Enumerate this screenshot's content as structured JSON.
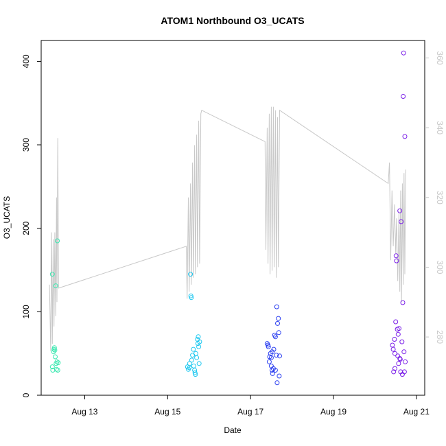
{
  "chart_data": {
    "type": "scatter",
    "title": "ATOM1 Northbound O3_UCATS",
    "xlabel": "Date",
    "ylabel": "O3_UCATS",
    "x_ticks": [
      {
        "label": "Aug 13",
        "value": 13.0
      },
      {
        "label": "Aug 15",
        "value": 15.0
      },
      {
        "label": "Aug 17",
        "value": 17.0
      },
      {
        "label": "Aug 19",
        "value": 19.0
      },
      {
        "label": "Aug 21",
        "value": 21.0
      }
    ],
    "xlim": [
      11.95,
      21.2
    ],
    "ylim": [
      0,
      425
    ],
    "y_ticks": [
      0,
      100,
      200,
      300,
      400
    ],
    "secondary_axis": {
      "color": "#c8c8c8",
      "ylim": [
        263.3,
        365.0
      ],
      "y_ticks": [
        280,
        300,
        320,
        340,
        360
      ]
    },
    "series": [
      {
        "color": "#3be8b0",
        "points": [
          [
            12.22,
            145
          ],
          [
            12.22,
            34
          ],
          [
            12.23,
            30
          ],
          [
            12.25,
            52
          ],
          [
            12.26,
            55
          ],
          [
            12.27,
            57
          ],
          [
            12.28,
            54
          ],
          [
            12.29,
            46
          ],
          [
            12.3,
            131
          ],
          [
            12.31,
            38
          ],
          [
            12.32,
            31
          ],
          [
            12.33,
            40
          ],
          [
            12.34,
            185
          ],
          [
            12.35,
            30
          ],
          [
            12.36,
            39
          ]
        ]
      },
      {
        "color": "#1ec8f0",
        "points": [
          [
            15.48,
            34
          ],
          [
            15.5,
            31
          ],
          [
            15.52,
            33
          ],
          [
            15.53,
            38
          ],
          [
            15.55,
            145
          ],
          [
            15.56,
            119
          ],
          [
            15.57,
            117
          ],
          [
            15.58,
            42
          ],
          [
            15.6,
            48
          ],
          [
            15.62,
            55
          ],
          [
            15.63,
            35
          ],
          [
            15.65,
            30
          ],
          [
            15.66,
            27
          ],
          [
            15.67,
            25
          ],
          [
            15.68,
            50
          ],
          [
            15.7,
            45
          ],
          [
            15.72,
            67
          ],
          [
            15.73,
            62
          ],
          [
            15.74,
            70
          ],
          [
            15.75,
            58
          ],
          [
            15.76,
            38
          ],
          [
            15.77,
            64
          ]
        ]
      },
      {
        "color": "#2a3ef0",
        "points": [
          [
            17.4,
            62
          ],
          [
            17.42,
            60
          ],
          [
            17.43,
            58
          ],
          [
            17.45,
            40
          ],
          [
            17.46,
            46
          ],
          [
            17.48,
            50
          ],
          [
            17.5,
            35
          ],
          [
            17.52,
            30
          ],
          [
            17.53,
            26
          ],
          [
            17.55,
            32
          ],
          [
            17.56,
            55
          ],
          [
            17.58,
            72
          ],
          [
            17.6,
            70
          ],
          [
            17.62,
            48
          ],
          [
            17.63,
            106
          ],
          [
            17.64,
            15
          ],
          [
            17.65,
            86
          ],
          [
            17.67,
            92
          ],
          [
            17.68,
            75
          ],
          [
            17.69,
            23
          ],
          [
            17.7,
            47
          ],
          [
            17.52,
            52
          ],
          [
            17.5,
            45
          ],
          [
            17.6,
            30
          ]
        ]
      },
      {
        "color": "#7a1ee8",
        "points": [
          [
            20.42,
            60
          ],
          [
            20.44,
            55
          ],
          [
            20.45,
            28
          ],
          [
            20.47,
            67
          ],
          [
            20.48,
            32
          ],
          [
            20.5,
            88
          ],
          [
            20.51,
            167
          ],
          [
            20.52,
            161
          ],
          [
            20.54,
            79
          ],
          [
            20.56,
            73
          ],
          [
            20.57,
            38
          ],
          [
            20.58,
            80
          ],
          [
            20.6,
            221
          ],
          [
            20.61,
            43
          ],
          [
            20.62,
            28
          ],
          [
            20.63,
            208
          ],
          [
            20.65,
            64
          ],
          [
            20.66,
            25
          ],
          [
            20.67,
            111
          ],
          [
            20.68,
            358
          ],
          [
            20.69,
            410
          ],
          [
            20.7,
            52
          ],
          [
            20.71,
            28
          ],
          [
            20.72,
            310
          ],
          [
            20.73,
            40
          ],
          [
            20.48,
            50
          ],
          [
            20.55,
            47
          ],
          [
            20.6,
            44
          ]
        ]
      }
    ],
    "secondary_line": [
      [
        12.15,
        295
      ],
      [
        12.18,
        276
      ],
      [
        12.2,
        310
      ],
      [
        12.22,
        278
      ],
      [
        12.24,
        308
      ],
      [
        12.26,
        283
      ],
      [
        12.28,
        310
      ],
      [
        12.3,
        286
      ],
      [
        12.32,
        320
      ],
      [
        12.33,
        290
      ],
      [
        12.35,
        337
      ],
      [
        12.37,
        294
      ],
      [
        15.45,
        306
      ],
      [
        15.47,
        291
      ],
      [
        15.5,
        320
      ],
      [
        15.52,
        293
      ],
      [
        15.55,
        324
      ],
      [
        15.57,
        295
      ],
      [
        15.6,
        330
      ],
      [
        15.62,
        297
      ],
      [
        15.65,
        335
      ],
      [
        15.67,
        298
      ],
      [
        15.7,
        338
      ],
      [
        15.72,
        300
      ],
      [
        15.75,
        342
      ],
      [
        15.77,
        301
      ],
      [
        15.8,
        344
      ],
      [
        15.82,
        345
      ],
      [
        17.35,
        336
      ],
      [
        17.37,
        305
      ],
      [
        17.4,
        340
      ],
      [
        17.42,
        301
      ],
      [
        17.45,
        344
      ],
      [
        17.47,
        298
      ],
      [
        17.5,
        346
      ],
      [
        17.52,
        299
      ],
      [
        17.55,
        346
      ],
      [
        17.57,
        300
      ],
      [
        17.6,
        345
      ],
      [
        17.62,
        297
      ],
      [
        17.65,
        343
      ],
      [
        17.67,
        300
      ],
      [
        17.7,
        345
      ],
      [
        20.32,
        324
      ],
      [
        20.35,
        330
      ],
      [
        20.38,
        302
      ],
      [
        20.41,
        322
      ],
      [
        20.44,
        306
      ],
      [
        20.47,
        318
      ],
      [
        20.5,
        304
      ],
      [
        20.52,
        314
      ],
      [
        20.55,
        296
      ],
      [
        20.58,
        316
      ],
      [
        20.6,
        293
      ],
      [
        20.62,
        322
      ],
      [
        20.64,
        290
      ],
      [
        20.66,
        324
      ],
      [
        20.68,
        295
      ],
      [
        20.7,
        327
      ],
      [
        20.72,
        298
      ],
      [
        20.74,
        328
      ]
    ]
  }
}
